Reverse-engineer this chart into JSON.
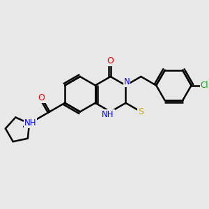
{
  "bg_color": "#e8e8e8",
  "bond_color": "#000000",
  "bond_width": 1.8,
  "atom_colors": {
    "N": "#0000ff",
    "O": "#ff0000",
    "S": "#ccaa00",
    "Cl": "#00aa00",
    "C": "#000000"
  },
  "font_size": 8.5,
  "fig_size": [
    3.0,
    3.0
  ],
  "dpi": 100
}
